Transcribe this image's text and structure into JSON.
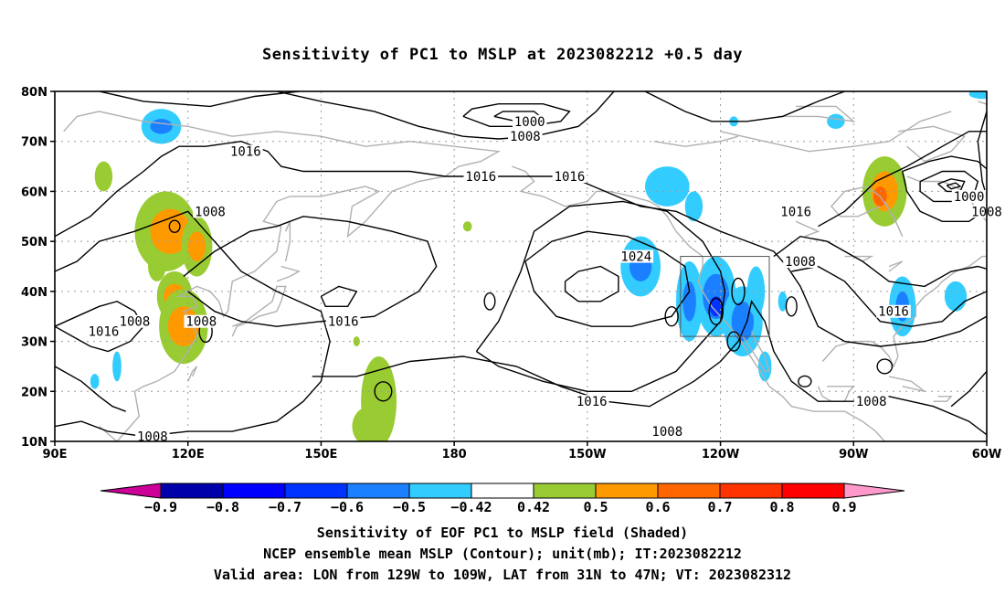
{
  "title": "Sensitivity of PC1 to MSLP at 2023082212 +0.5 day",
  "captions": [
    "Sensitivity of EOF PC1 to MSLP field (Shaded)",
    "NCEP ensemble mean MSLP (Contour); unit(mb); IT:2023082212",
    "Valid area: LON from 129W to 109W, LAT from 31N to 47N; VT: 2023082312"
  ],
  "map": {
    "lon_range": [
      90,
      300
    ],
    "lat_range": [
      10,
      80
    ],
    "lat_ticks": [
      {
        "value": 80,
        "label": "80N"
      },
      {
        "value": 70,
        "label": "70N"
      },
      {
        "value": 60,
        "label": "60N"
      },
      {
        "value": 50,
        "label": "50N"
      },
      {
        "value": 40,
        "label": "40N"
      },
      {
        "value": 30,
        "label": "30N"
      },
      {
        "value": 20,
        "label": "20N"
      },
      {
        "value": 10,
        "label": "10N"
      }
    ],
    "lon_ticks": [
      {
        "value": 90,
        "label": "90E"
      },
      {
        "value": 120,
        "label": "120E"
      },
      {
        "value": 150,
        "label": "150E"
      },
      {
        "value": 180,
        "label": "180"
      },
      {
        "value": 210,
        "label": "150W"
      },
      {
        "value": 240,
        "label": "120W"
      },
      {
        "value": 270,
        "label": "90W"
      },
      {
        "value": 300,
        "label": "60W"
      }
    ],
    "valid_area": {
      "lon": [
        231,
        251
      ],
      "lat": [
        31,
        47
      ]
    },
    "contour_labels": [
      {
        "text": "1000",
        "lon": 197,
        "lat": 74
      },
      {
        "text": "1008",
        "lon": 196,
        "lat": 71
      },
      {
        "text": "1016",
        "lon": 133,
        "lat": 68
      },
      {
        "text": "1016",
        "lon": 186,
        "lat": 63
      },
      {
        "text": "1016",
        "lon": 206,
        "lat": 63
      },
      {
        "text": "1000",
        "lon": 296,
        "lat": 59
      },
      {
        "text": "1008",
        "lon": 300,
        "lat": 56
      },
      {
        "text": "1016",
        "lon": 257,
        "lat": 56
      },
      {
        "text": "1008",
        "lon": 125,
        "lat": 56
      },
      {
        "text": "1024",
        "lon": 221,
        "lat": 47
      },
      {
        "text": "1008",
        "lon": 258,
        "lat": 46
      },
      {
        "text": "1016",
        "lon": 279,
        "lat": 36
      },
      {
        "text": "1016",
        "lon": 155,
        "lat": 34
      },
      {
        "text": "1008",
        "lon": 123,
        "lat": 34
      },
      {
        "text": "1008",
        "lon": 108,
        "lat": 34
      },
      {
        "text": "1016",
        "lon": 101,
        "lat": 32
      },
      {
        "text": "1016",
        "lon": 211,
        "lat": 18
      },
      {
        "text": "1008",
        "lon": 274,
        "lat": 18
      },
      {
        "text": "1008",
        "lon": 228,
        "lat": 12
      },
      {
        "text": "1008",
        "lon": 112,
        "lat": 11
      }
    ],
    "shaded_regions": [
      {
        "lon": 115,
        "lat": 52,
        "rx": 14,
        "ry": 16,
        "color": "#99cc33"
      },
      {
        "lon": 116,
        "lat": 52,
        "rx": 9,
        "ry": 9,
        "color": "#ff9900"
      },
      {
        "lon": 122,
        "lat": 49,
        "rx": 7,
        "ry": 12,
        "color": "#99cc33"
      },
      {
        "lon": 122,
        "lat": 49,
        "rx": 4,
        "ry": 6,
        "color": "#ff9900"
      },
      {
        "lon": 117,
        "lat": 39,
        "rx": 8,
        "ry": 10,
        "color": "#99cc33"
      },
      {
        "lon": 117,
        "lat": 39,
        "rx": 5,
        "ry": 5,
        "color": "#ff9900"
      },
      {
        "lon": 119,
        "lat": 33,
        "rx": 11,
        "ry": 15,
        "color": "#99cc33"
      },
      {
        "lon": 119,
        "lat": 33,
        "rx": 7,
        "ry": 8,
        "color": "#ff9900"
      },
      {
        "lon": 113,
        "lat": 45,
        "rx": 4,
        "ry": 6,
        "color": "#99cc33"
      },
      {
        "lon": 101,
        "lat": 63,
        "rx": 4,
        "ry": 6,
        "color": "#99cc33"
      },
      {
        "lon": 114,
        "lat": 73,
        "rx": 9,
        "ry": 7,
        "color": "#33ccff"
      },
      {
        "lon": 114,
        "lat": 73,
        "rx": 5,
        "ry": 3,
        "color": "#1a80ff"
      },
      {
        "lon": 163,
        "lat": 18,
        "rx": 8,
        "ry": 18,
        "color": "#99cc33"
      },
      {
        "lon": 161,
        "lat": 13,
        "rx": 8,
        "ry": 8,
        "color": "#99cc33"
      },
      {
        "lon": 222,
        "lat": 45,
        "rx": 9,
        "ry": 12,
        "color": "#33ccff"
      },
      {
        "lon": 222,
        "lat": 45,
        "rx": 5,
        "ry": 6,
        "color": "#1a80ff"
      },
      {
        "lon": 228,
        "lat": 61,
        "rx": 10,
        "ry": 8,
        "color": "#33ccff"
      },
      {
        "lon": 234,
        "lat": 57,
        "rx": 4,
        "ry": 6,
        "color": "#33ccff"
      },
      {
        "lon": 233,
        "lat": 38,
        "rx": 6,
        "ry": 16,
        "color": "#33ccff"
      },
      {
        "lon": 233,
        "lat": 38,
        "rx": 3,
        "ry": 8,
        "color": "#1a80ff"
      },
      {
        "lon": 239,
        "lat": 39,
        "rx": 9,
        "ry": 16,
        "color": "#33ccff"
      },
      {
        "lon": 239,
        "lat": 39,
        "rx": 6,
        "ry": 9,
        "color": "#1a80ff"
      },
      {
        "lon": 239,
        "lat": 37,
        "rx": 3,
        "ry": 4,
        "color": "#0033ff"
      },
      {
        "lon": 245,
        "lat": 34,
        "rx": 9,
        "ry": 14,
        "color": "#33ccff"
      },
      {
        "lon": 245,
        "lat": 34,
        "rx": 5,
        "ry": 8,
        "color": "#1a80ff"
      },
      {
        "lon": 248,
        "lat": 40,
        "rx": 4,
        "ry": 10,
        "color": "#33ccff"
      },
      {
        "lon": 250,
        "lat": 25,
        "rx": 3,
        "ry": 6,
        "color": "#33ccff"
      },
      {
        "lon": 277,
        "lat": 60,
        "rx": 10,
        "ry": 14,
        "color": "#99cc33"
      },
      {
        "lon": 277,
        "lat": 60,
        "rx": 6,
        "ry": 8,
        "color": "#ff9900"
      },
      {
        "lon": 276,
        "lat": 59,
        "rx": 3,
        "ry": 4,
        "color": "#ff6600"
      },
      {
        "lon": 281,
        "lat": 37,
        "rx": 6,
        "ry": 12,
        "color": "#33ccff"
      },
      {
        "lon": 281,
        "lat": 37,
        "rx": 3,
        "ry": 6,
        "color": "#1a80ff"
      },
      {
        "lon": 293,
        "lat": 39,
        "rx": 5,
        "ry": 6,
        "color": "#33ccff"
      },
      {
        "lon": 254,
        "lat": 38,
        "rx": 2,
        "ry": 4,
        "color": "#33ccff"
      },
      {
        "lon": 104,
        "lat": 25,
        "rx": 2,
        "ry": 6,
        "color": "#33ccff"
      },
      {
        "lon": 99,
        "lat": 22,
        "rx": 2,
        "ry": 3,
        "color": "#33ccff"
      },
      {
        "lon": 266,
        "lat": 74,
        "rx": 4,
        "ry": 3,
        "color": "#33ccff"
      },
      {
        "lon": 243,
        "lat": 74,
        "rx": 2,
        "ry": 2,
        "color": "#33ccff"
      },
      {
        "lon": 299,
        "lat": 79.5,
        "rx": 6,
        "ry": 2,
        "color": "#33ccff"
      },
      {
        "lon": 183,
        "lat": 53,
        "rx": 2,
        "ry": 2,
        "color": "#99cc33"
      },
      {
        "lon": 158,
        "lat": 30,
        "rx": 1.5,
        "ry": 2,
        "color": "#99cc33"
      }
    ]
  },
  "colorbar": {
    "bins": [
      {
        "color": "#cc0099",
        "low": null,
        "high": -0.9
      },
      {
        "color": "#0000aa",
        "low": -0.9,
        "high": -0.8
      },
      {
        "color": "#0000ff",
        "low": -0.8,
        "high": -0.7
      },
      {
        "color": "#0033ff",
        "low": -0.7,
        "high": -0.6
      },
      {
        "color": "#1a80ff",
        "low": -0.6,
        "high": -0.5
      },
      {
        "color": "#33ccff",
        "low": -0.5,
        "high": -0.42
      },
      {
        "color": "#ffffff",
        "low": -0.42,
        "high": 0.42
      },
      {
        "color": "#99cc33",
        "low": 0.42,
        "high": 0.5
      },
      {
        "color": "#ff9900",
        "low": 0.5,
        "high": 0.6
      },
      {
        "color": "#ff6600",
        "low": 0.6,
        "high": 0.7
      },
      {
        "color": "#ff3300",
        "low": 0.7,
        "high": 0.8
      },
      {
        "color": "#ff0000",
        "low": 0.8,
        "high": 0.9
      },
      {
        "color": "#ff99cc",
        "low": 0.9,
        "high": null
      }
    ],
    "labels": [
      "-0.9",
      "-0.8",
      "-0.7",
      "-0.6",
      "-0.5",
      "-0.42",
      "0.42",
      "0.5",
      "0.6",
      "0.7",
      "0.8",
      "0.9"
    ]
  }
}
